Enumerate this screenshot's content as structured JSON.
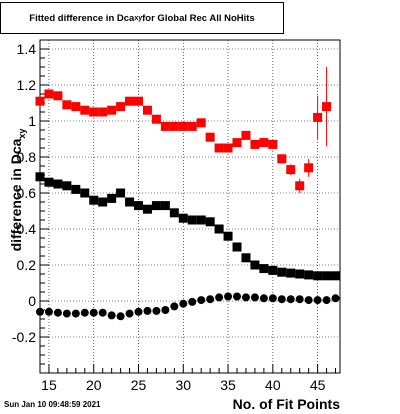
{
  "title": {
    "prefix": "Fitted difference in Dca",
    "sub": "xy",
    "suffix": " for Global Rec All NoHits"
  },
  "timestamp": "Sun Jan 10 09:48:59 2021",
  "chart_data": {
    "type": "scatter",
    "title": "Fitted difference in Dca_xy for Global Rec All NoHits",
    "xlabel": "No. of Fit Points",
    "ylabel": "difference in Dca_xy",
    "xlim": [
      14,
      47.5
    ],
    "ylim": [
      -0.4,
      1.45
    ],
    "xticks": [
      15,
      20,
      25,
      30,
      35,
      40,
      45
    ],
    "yticks": [
      -0.2,
      0,
      0.2,
      0.4,
      0.6,
      0.8,
      1,
      1.2,
      1.4
    ],
    "grid": true,
    "series": [
      {
        "color": "#ff0000",
        "marker": "square",
        "x": [
          14,
          15,
          16,
          17,
          18,
          19,
          20,
          21,
          22,
          23,
          24,
          25,
          26,
          27,
          28,
          29,
          30,
          31,
          32,
          33,
          34,
          35,
          36,
          37,
          38,
          39,
          40,
          41,
          42,
          43,
          44,
          45,
          46
        ],
        "y": [
          1.11,
          1.15,
          1.14,
          1.09,
          1.08,
          1.06,
          1.05,
          1.05,
          1.06,
          1.08,
          1.11,
          1.11,
          1.06,
          1.01,
          0.97,
          0.97,
          0.97,
          0.97,
          0.99,
          0.91,
          0.85,
          0.85,
          0.88,
          0.92,
          0.87,
          0.88,
          0.87,
          0.79,
          0.73,
          0.64,
          0.74,
          1.02,
          1.08
        ],
        "yerr": [
          0,
          0,
          0,
          0,
          0,
          0,
          0,
          0,
          0,
          0,
          0,
          0,
          0,
          0,
          0,
          0,
          0,
          0,
          0,
          0,
          0,
          0,
          0,
          0,
          0,
          0,
          0,
          0,
          0.03,
          0.04,
          0.05,
          0.12,
          0.22
        ]
      },
      {
        "color": "#000000",
        "marker": "square",
        "x": [
          14,
          15,
          16,
          17,
          18,
          19,
          20,
          21,
          22,
          23,
          24,
          25,
          26,
          27,
          28,
          29,
          30,
          31,
          32,
          33,
          34,
          35,
          36,
          37,
          38,
          39,
          40,
          41,
          42,
          43,
          44,
          45,
          46,
          47
        ],
        "y": [
          0.69,
          0.66,
          0.65,
          0.64,
          0.62,
          0.6,
          0.56,
          0.55,
          0.57,
          0.6,
          0.55,
          0.53,
          0.51,
          0.53,
          0.53,
          0.49,
          0.46,
          0.45,
          0.45,
          0.44,
          0.4,
          0.36,
          0.3,
          0.24,
          0.2,
          0.18,
          0.17,
          0.16,
          0.155,
          0.15,
          0.145,
          0.14,
          0.14,
          0.14
        ]
      },
      {
        "color": "#000000",
        "marker": "circle",
        "x": [
          14,
          15,
          16,
          17,
          18,
          19,
          20,
          21,
          22,
          23,
          24,
          25,
          26,
          27,
          28,
          29,
          30,
          31,
          32,
          33,
          34,
          35,
          36,
          37,
          38,
          39,
          40,
          41,
          42,
          43,
          44,
          45,
          46,
          47
        ],
        "y": [
          -0.06,
          -0.06,
          -0.065,
          -0.07,
          -0.07,
          -0.065,
          -0.065,
          -0.065,
          -0.08,
          -0.085,
          -0.07,
          -0.06,
          -0.055,
          -0.055,
          -0.05,
          -0.03,
          -0.015,
          -0.005,
          0.005,
          0.01,
          0.02,
          0.025,
          0.025,
          0.02,
          0.02,
          0.015,
          0.015,
          0.01,
          0.01,
          0.01,
          0.005,
          0.005,
          0.005,
          0.015
        ]
      }
    ]
  }
}
